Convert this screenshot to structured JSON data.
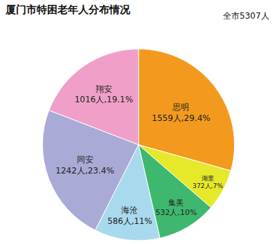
{
  "chart_data": {
    "type": "pie",
    "title": "厦门市特困老年人分布情况",
    "subtitle": "全市5307人",
    "categories": [
      "思明",
      "湖里",
      "集美",
      "海沧",
      "同安",
      "翔安"
    ],
    "values": [
      1559,
      372,
      532,
      586,
      1242,
      1016
    ],
    "value_labels": [
      "1559人,29.4%",
      "372人,7%",
      "532人,10%",
      "586人,11%",
      "1242人,23.4%",
      "1016人,19.1%"
    ],
    "colors": [
      "#f39a1e",
      "#e6e82a",
      "#3fb86f",
      "#a9d9ec",
      "#aaaad6",
      "#f0a0c8"
    ],
    "data_labels": true
  }
}
